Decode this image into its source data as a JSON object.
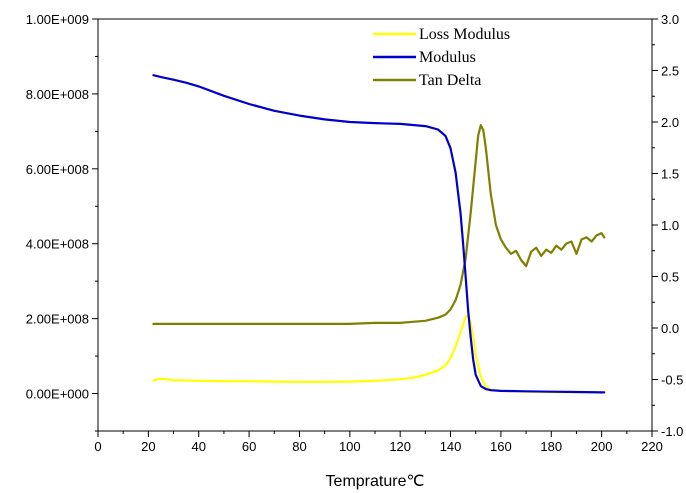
{
  "chart_data": {
    "type": "line",
    "title": "",
    "xlabel": "Temprature℃",
    "ylabel": "",
    "y2label": "",
    "xlim": [
      0,
      220
    ],
    "ylim": [
      -100000000,
      1000000000
    ],
    "y2lim": [
      -1.0,
      3.0
    ],
    "x_ticks": [
      0,
      20,
      40,
      60,
      80,
      100,
      120,
      140,
      160,
      180,
      200,
      220
    ],
    "y_ticks": [
      0,
      200000000,
      400000000,
      600000000,
      800000000,
      1000000000
    ],
    "y_tick_labels": [
      "0.00E+000",
      "2.00E+008",
      "4.00E+008",
      "6.00E+008",
      "8.00E+008",
      "1.00E+009"
    ],
    "y2_ticks": [
      -1.0,
      -0.5,
      0.0,
      0.5,
      1.0,
      1.5,
      2.0,
      2.5,
      3.0
    ],
    "y2_tick_labels": [
      "-1.0",
      "-0.5",
      "0.0",
      "0.5",
      "1.0",
      "1.5",
      "2.0",
      "2.5",
      "3.0"
    ],
    "grid": false,
    "legend_position": "top-center",
    "series": [
      {
        "name": "Loss Modulus",
        "axis": "left",
        "color": "#ffff00",
        "x": [
          22,
          25,
          30,
          40,
          50,
          60,
          70,
          80,
          90,
          100,
          110,
          120,
          125,
          130,
          135,
          138,
          140,
          142,
          144,
          146,
          147,
          148,
          149,
          150,
          152,
          154,
          156,
          160,
          170,
          180,
          190,
          200
        ],
        "y": [
          35000000,
          40000000,
          36000000,
          34000000,
          33000000,
          33000000,
          32000000,
          31000000,
          31000000,
          32000000,
          34000000,
          38000000,
          42000000,
          50000000,
          62000000,
          75000000,
          95000000,
          125000000,
          165000000,
          205000000,
          208000000,
          190000000,
          150000000,
          100000000,
          45000000,
          18000000,
          10000000,
          7000000,
          5000000,
          4000000,
          3000000,
          3000000
        ]
      },
      {
        "name": "Modulus",
        "axis": "left",
        "color": "#0000cc",
        "x": [
          22,
          25,
          30,
          35,
          40,
          50,
          60,
          70,
          80,
          90,
          100,
          110,
          120,
          130,
          135,
          138,
          140,
          142,
          144,
          145,
          146,
          147,
          148,
          149,
          150,
          152,
          154,
          156,
          160,
          170,
          180,
          190,
          200,
          201
        ],
        "y": [
          850000000,
          845000000,
          838000000,
          830000000,
          820000000,
          795000000,
          773000000,
          755000000,
          742000000,
          732000000,
          725000000,
          722000000,
          720000000,
          714000000,
          705000000,
          688000000,
          655000000,
          590000000,
          480000000,
          400000000,
          310000000,
          220000000,
          150000000,
          90000000,
          50000000,
          20000000,
          12000000,
          9000000,
          7000000,
          6000000,
          5000000,
          4000000,
          3000000,
          3000000
        ]
      },
      {
        "name": "Tan Delta",
        "axis": "right",
        "color": "#808000",
        "x": [
          22,
          30,
          40,
          50,
          60,
          70,
          80,
          90,
          100,
          110,
          120,
          125,
          130,
          135,
          138,
          140,
          142,
          144,
          146,
          148,
          150,
          151,
          152,
          153,
          154,
          156,
          158,
          160,
          162,
          164,
          166,
          168,
          170,
          172,
          174,
          176,
          178,
          180,
          182,
          184,
          186,
          188,
          190,
          192,
          194,
          196,
          198,
          200,
          201
        ],
        "y": [
          0.04,
          0.04,
          0.04,
          0.04,
          0.04,
          0.04,
          0.04,
          0.04,
          0.04,
          0.05,
          0.05,
          0.06,
          0.07,
          0.1,
          0.13,
          0.18,
          0.27,
          0.42,
          0.68,
          1.12,
          1.62,
          1.87,
          1.97,
          1.92,
          1.75,
          1.3,
          1.0,
          0.86,
          0.78,
          0.72,
          0.75,
          0.66,
          0.6,
          0.74,
          0.78,
          0.7,
          0.76,
          0.73,
          0.8,
          0.76,
          0.82,
          0.84,
          0.72,
          0.86,
          0.88,
          0.84,
          0.9,
          0.92,
          0.88
        ]
      }
    ]
  }
}
